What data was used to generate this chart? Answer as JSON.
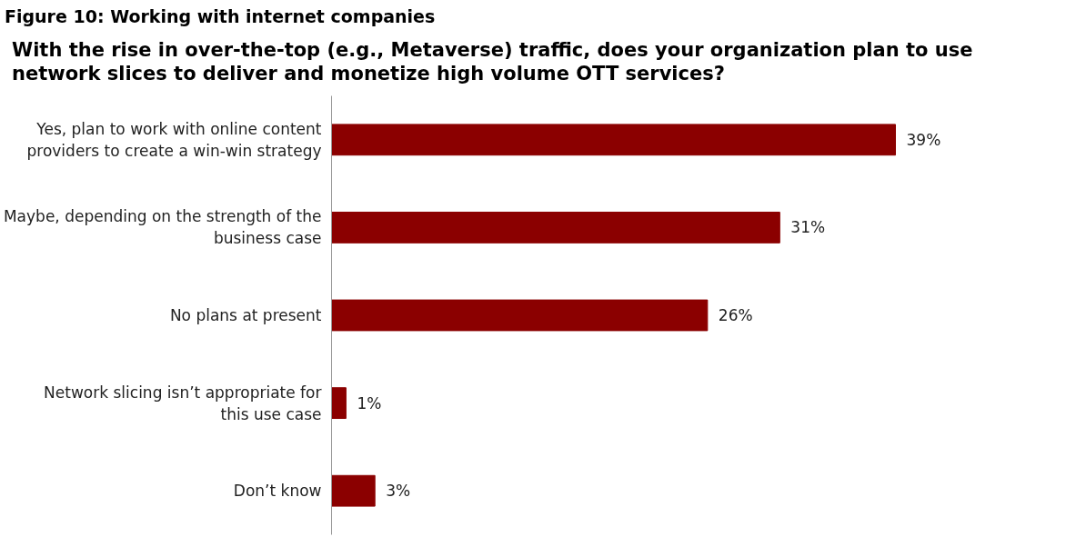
{
  "chart_data": {
    "type": "bar",
    "orientation": "horizontal",
    "title": "With the rise in over-the-top (e.g., Metaverse) traffic, does your organization plan to use network slices to deliver and monetize high volume OTT services?",
    "annotations": [
      "Figure 10: Working with internet companies"
    ],
    "categories": [
      "Yes, plan to work with online content providers to create a win-win strategy",
      "Maybe, depending on the strength of the business case",
      "No plans at present",
      "Network slicing isn’t appropriate for this use case",
      "Don’t know"
    ],
    "values": [
      39,
      31,
      26,
      1,
      3
    ],
    "value_labels": [
      "39%",
      "31%",
      "26%",
      "1%",
      "3%"
    ],
    "color": "#8b0000",
    "grid": false
  }
}
